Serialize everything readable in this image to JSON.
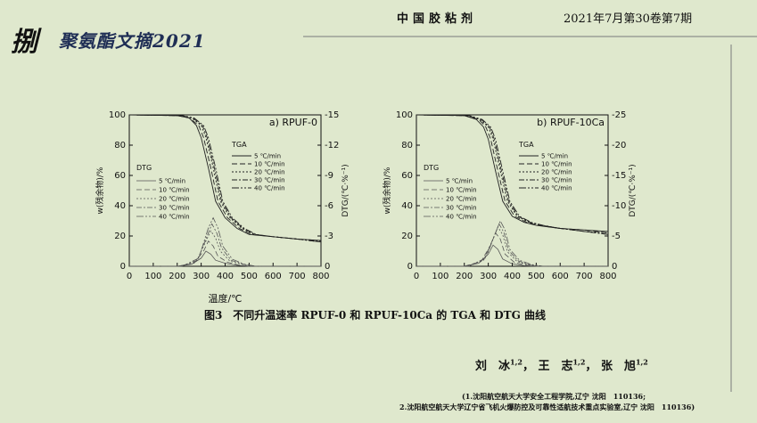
{
  "header": {
    "logo_text": "捌",
    "section_title": "聚氨酯文摘2021",
    "journal_name": "中国胶粘剂",
    "issue": "2021年7月第30卷第7期"
  },
  "chart_data": [
    {
      "type": "line",
      "title": "a) RPUF-0",
      "xlabel": "温度/℃",
      "ylabel_left": "w(残余物)/%",
      "ylabel_right": "DTG/(℃·%⁻¹)",
      "xlim": [
        0,
        800
      ],
      "ylim_left": [
        0,
        100
      ],
      "ylim_right": [
        15,
        0
      ],
      "x_ticks": [
        0,
        100,
        200,
        300,
        400,
        500,
        600,
        700,
        800
      ],
      "y_ticks_left": [
        0,
        20,
        40,
        60,
        80,
        100
      ],
      "y_ticks_right": [
        0,
        -3,
        -6,
        -9,
        -12,
        -15
      ],
      "legend_tga_title": "TGA",
      "legend_dtg_title": "DTG",
      "legend_entries": [
        "5 ℃/min",
        "10 ℃/min",
        "20 ℃/min",
        "30 ℃/min",
        "40 ℃/min"
      ],
      "tga_series": [
        {
          "name": "5 ℃/min",
          "x": [
            0,
            200,
            250,
            280,
            300,
            330,
            360,
            400,
            450,
            500,
            600,
            700,
            800
          ],
          "y": [
            100,
            99.5,
            98,
            93,
            85,
            65,
            43,
            32,
            25,
            21,
            19.5,
            18,
            17
          ]
        },
        {
          "name": "10 ℃/min",
          "x": [
            0,
            200,
            250,
            290,
            310,
            340,
            370,
            410,
            460,
            510,
            600,
            700,
            800
          ],
          "y": [
            100,
            99.5,
            98,
            93,
            85,
            65,
            43,
            32,
            25,
            21,
            19.5,
            18,
            17
          ]
        },
        {
          "name": "20 ℃/min",
          "x": [
            0,
            210,
            260,
            300,
            320,
            350,
            380,
            420,
            470,
            520,
            600,
            700,
            800
          ],
          "y": [
            100,
            99.5,
            98,
            93,
            85,
            65,
            43,
            32,
            25,
            21,
            19.5,
            18,
            16.5
          ]
        },
        {
          "name": "30 ℃/min",
          "x": [
            0,
            215,
            265,
            305,
            325,
            355,
            385,
            425,
            475,
            525,
            600,
            700,
            800
          ],
          "y": [
            100,
            99.5,
            98,
            93,
            85,
            65,
            43,
            32,
            25,
            21,
            19.5,
            18,
            16
          ]
        },
        {
          "name": "40 ℃/min",
          "x": [
            0,
            220,
            270,
            310,
            330,
            360,
            390,
            430,
            480,
            530,
            600,
            700,
            800
          ],
          "y": [
            100,
            99.5,
            98,
            93,
            85,
            65,
            43,
            32,
            25,
            21,
            19.5,
            18,
            16
          ]
        }
      ],
      "dtg_series": [
        {
          "name": "5 ℃/min",
          "x": [
            0,
            200,
            260,
            300,
            320,
            340,
            360,
            400,
            450,
            500,
            800
          ],
          "y": [
            0,
            0,
            -0.2,
            -0.8,
            -1.5,
            -1.2,
            -0.6,
            -0.3,
            -0.1,
            0,
            0
          ]
        },
        {
          "name": "10 ℃/min",
          "x": [
            0,
            200,
            270,
            310,
            330,
            350,
            370,
            410,
            460,
            510,
            800
          ],
          "y": [
            0,
            0,
            -0.3,
            -1.5,
            -2.5,
            -2.0,
            -1.0,
            -0.4,
            -0.1,
            0,
            0
          ]
        },
        {
          "name": "20 ℃/min",
          "x": [
            0,
            210,
            280,
            320,
            340,
            360,
            380,
            420,
            470,
            520,
            800
          ],
          "y": [
            0,
            0,
            -0.5,
            -2.5,
            -3.5,
            -2.8,
            -1.5,
            -0.5,
            -0.2,
            0,
            0
          ]
        },
        {
          "name": "30 ℃/min",
          "x": [
            0,
            215,
            285,
            325,
            345,
            365,
            385,
            425,
            475,
            525,
            800
          ],
          "y": [
            0,
            0,
            -0.6,
            -3.0,
            -4.2,
            -3.3,
            -1.8,
            -0.6,
            -0.2,
            0,
            0
          ]
        },
        {
          "name": "40 ℃/min",
          "x": [
            0,
            220,
            290,
            330,
            350,
            370,
            390,
            430,
            480,
            530,
            800
          ],
          "y": [
            0,
            0,
            -0.8,
            -3.8,
            -4.8,
            -3.8,
            -2.0,
            -0.7,
            -0.2,
            0,
            0
          ]
        }
      ]
    },
    {
      "type": "line",
      "title": "b) RPUF-10Ca",
      "xlabel": "温度/℃",
      "ylabel_left": "w(残余物)/%",
      "ylabel_right": "DTG/(℃·%⁻¹)",
      "xlim": [
        0,
        800
      ],
      "ylim_left": [
        0,
        100
      ],
      "ylim_right": [
        25,
        0
      ],
      "x_ticks": [
        0,
        100,
        200,
        300,
        400,
        500,
        600,
        700,
        800
      ],
      "y_ticks_left": [
        0,
        20,
        40,
        60,
        80,
        100
      ],
      "y_ticks_right": [
        0,
        -5,
        -10,
        -15,
        -20,
        -25
      ],
      "legend_tga_title": "TGA",
      "legend_dtg_title": "DTG",
      "legend_entries": [
        "5 ℃/min",
        "10 ℃/min",
        "20 ℃/min",
        "30 ℃/min",
        "40 ℃/min"
      ],
      "tga_series": [
        {
          "name": "5 ℃/min",
          "x": [
            0,
            200,
            250,
            280,
            300,
            330,
            360,
            400,
            450,
            500,
            600,
            700,
            800
          ],
          "y": [
            100,
            99.5,
            97,
            92,
            84,
            63,
            43,
            33,
            29,
            27,
            25,
            24,
            23
          ]
        },
        {
          "name": "10 ℃/min",
          "x": [
            0,
            200,
            260,
            290,
            310,
            340,
            370,
            410,
            460,
            510,
            600,
            700,
            800
          ],
          "y": [
            100,
            99.5,
            97,
            92,
            84,
            63,
            43,
            33,
            29,
            27,
            25,
            24,
            22
          ]
        },
        {
          "name": "20 ℃/min",
          "x": [
            0,
            210,
            265,
            300,
            320,
            350,
            380,
            420,
            470,
            520,
            600,
            700,
            800
          ],
          "y": [
            100,
            99.5,
            97,
            92,
            84,
            63,
            43,
            33,
            29,
            27,
            25,
            23,
            22
          ]
        },
        {
          "name": "30 ℃/min",
          "x": [
            0,
            215,
            270,
            305,
            325,
            355,
            385,
            425,
            475,
            525,
            600,
            700,
            800
          ],
          "y": [
            100,
            99.5,
            97,
            92,
            84,
            63,
            43,
            33,
            29,
            27,
            25,
            23,
            21
          ]
        },
        {
          "name": "40 ℃/min",
          "x": [
            0,
            220,
            275,
            310,
            330,
            360,
            390,
            430,
            480,
            530,
            600,
            700,
            800
          ],
          "y": [
            100,
            99.5,
            97,
            92,
            84,
            63,
            43,
            33,
            29,
            27,
            25,
            23,
            21
          ]
        }
      ],
      "dtg_series": [
        {
          "name": "5 ℃/min",
          "x": [
            0,
            200,
            260,
            300,
            320,
            340,
            360,
            400,
            450,
            500,
            800
          ],
          "y": [
            0,
            0,
            -0.5,
            -2.0,
            -3.5,
            -2.8,
            -1.2,
            -0.4,
            -0.1,
            0,
            0
          ]
        },
        {
          "name": "10 ℃/min",
          "x": [
            0,
            200,
            270,
            310,
            330,
            350,
            370,
            410,
            460,
            510,
            800
          ],
          "y": [
            0,
            0,
            -0.8,
            -3.5,
            -5.5,
            -4.5,
            -2.0,
            -0.6,
            -0.2,
            0,
            0
          ]
        },
        {
          "name": "20 ℃/min",
          "x": [
            0,
            210,
            280,
            320,
            340,
            360,
            380,
            420,
            470,
            520,
            800
          ],
          "y": [
            0,
            0,
            -1.0,
            -4.5,
            -6.5,
            -5.2,
            -2.4,
            -0.8,
            -0.2,
            0,
            0
          ]
        },
        {
          "name": "30 ℃/min",
          "x": [
            0,
            215,
            285,
            325,
            345,
            365,
            385,
            425,
            475,
            525,
            800
          ],
          "y": [
            0,
            0,
            -1.2,
            -5.0,
            -7.0,
            -5.6,
            -2.6,
            -0.9,
            -0.2,
            0,
            0
          ]
        },
        {
          "name": "40 ℃/min",
          "x": [
            0,
            220,
            290,
            330,
            350,
            370,
            390,
            430,
            480,
            530,
            800
          ],
          "y": [
            0,
            0,
            -1.4,
            -5.5,
            -7.5,
            -6.0,
            -2.8,
            -1.0,
            -0.3,
            0,
            0
          ]
        }
      ]
    }
  ],
  "caption": {
    "text": "图3　不同升温速率 RPUF-0 和 RPUF-10Ca 的 TGA 和 DTG 曲线"
  },
  "authors": {
    "names": [
      "刘　冰",
      "王　志",
      "张　旭"
    ],
    "sups": [
      "1,2",
      "1,2",
      "1,2"
    ]
  },
  "affiliations": [
    "(1.沈阳航空航天大学安全工程学院,辽宁 沈阳　110136;",
    "2.沈阳航空航天大学辽宁省飞机火爆防控及可靠性适航技术重点实验室,辽宁 沈阳　110136)"
  ]
}
